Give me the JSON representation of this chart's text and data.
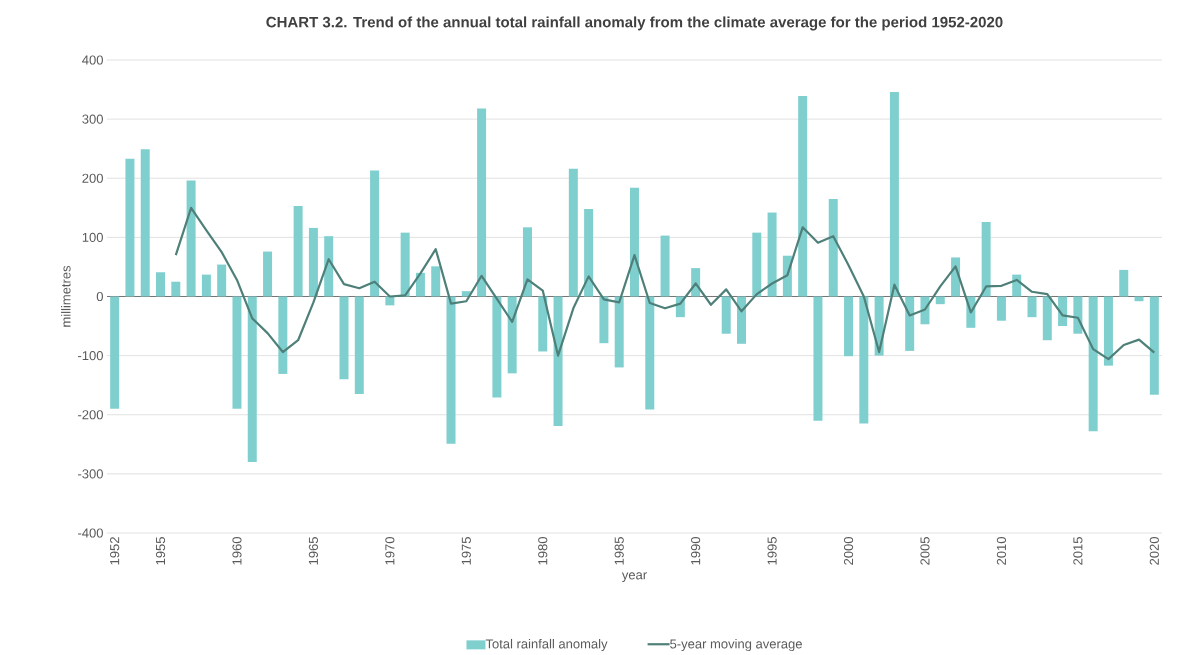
{
  "chart_data": {
    "type": "bar",
    "title": "CHART 3.2. Trend of the annual total rainfall anomaly from the climate average for the period 1952-2020",
    "xlabel": "year",
    "ylabel": "millimetres",
    "categories": [
      "1952",
      null,
      null,
      "1955",
      null,
      null,
      null,
      null,
      "1960",
      null,
      null,
      null,
      null,
      "1965",
      null,
      null,
      null,
      null,
      "1970",
      null,
      null,
      null,
      null,
      "1975",
      null,
      null,
      null,
      null,
      "1980",
      null,
      null,
      null,
      null,
      "1985",
      null,
      null,
      null,
      null,
      "1990",
      null,
      null,
      null,
      null,
      "1995",
      null,
      null,
      null,
      null,
      "2000",
      null,
      null,
      null,
      null,
      "2005",
      null,
      null,
      null,
      null,
      "2010",
      null,
      null,
      null,
      null,
      "2015",
      null,
      null,
      null,
      null,
      "2020"
    ],
    "series": [
      {
        "name": "Total rainfall anomaly",
        "color": "#80cfcf",
        "values": [
          -190,
          233,
          249,
          41,
          25,
          196,
          37,
          54,
          -190,
          -280,
          76,
          -131,
          153,
          116,
          102,
          -140,
          -165,
          213,
          -15,
          108,
          40,
          51,
          -249,
          9,
          318,
          -171,
          -130,
          117,
          -93,
          -219,
          216,
          148,
          -79,
          -120,
          184,
          -191,
          103,
          -35,
          48,
          0,
          -63,
          -80,
          108,
          142,
          69,
          339,
          -210,
          165,
          -101,
          -215,
          -100,
          346,
          -92,
          -47,
          -13,
          66,
          -53,
          126,
          -41,
          37,
          -35,
          -74,
          -50,
          -63,
          -228,
          -117,
          45,
          -8,
          -166
        ]
      },
      {
        "name": "5-year moving average",
        "type": "line",
        "color": "#4e8079",
        "values": [
          null,
          null,
          null,
          null,
          70,
          150,
          112,
          75,
          28,
          -37,
          -62,
          -94,
          -74,
          -10,
          63,
          21,
          14,
          25,
          0,
          2,
          39,
          80,
          -12,
          -8,
          35,
          -4,
          -43,
          29,
          10,
          -100,
          -20,
          34,
          -5,
          -10,
          70,
          -11,
          -20,
          -12,
          22,
          -14,
          12,
          -25,
          4,
          22,
          36,
          117,
          91,
          102,
          53,
          0,
          -94,
          20,
          -32,
          -22,
          17,
          51,
          -27,
          17,
          18,
          28,
          8,
          4,
          -32,
          -36,
          -89,
          -106,
          -82,
          -73,
          -95
        ]
      }
    ],
    "ylim": [
      -400,
      400
    ],
    "yticks": [
      -400,
      -300,
      -200,
      -100,
      0,
      100,
      200,
      300,
      400
    ],
    "grid": "y",
    "legend": "bottom"
  }
}
